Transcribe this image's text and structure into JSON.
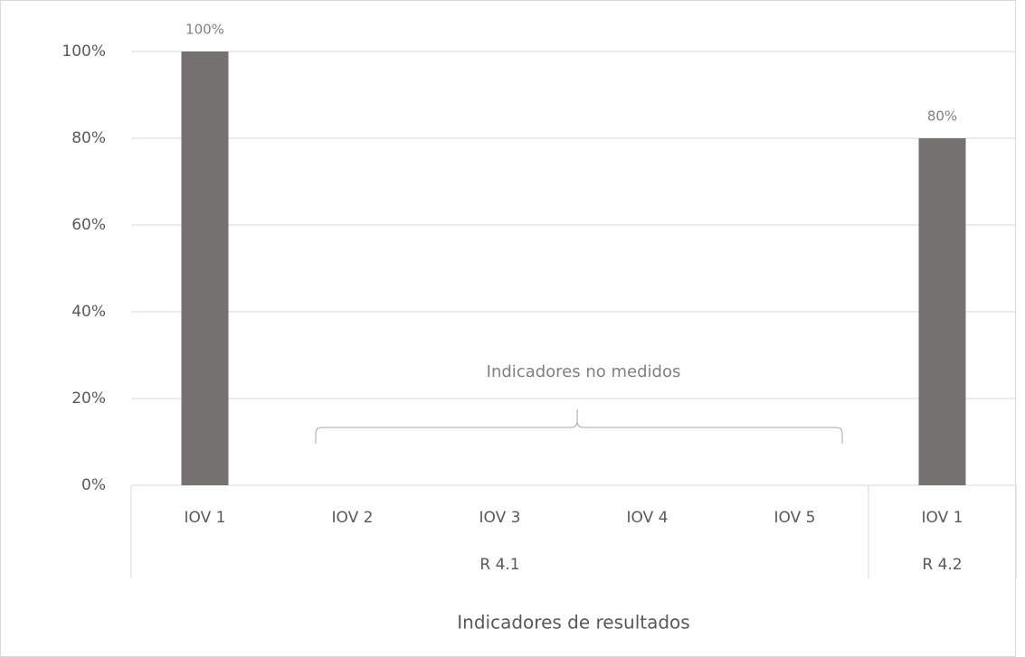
{
  "chart_data": {
    "type": "bar",
    "categories": [
      "IOV 1",
      "IOV 2",
      "IOV 3",
      "IOV 4",
      "IOV 5",
      "IOV 1"
    ],
    "groups": [
      {
        "label": "R 4.1",
        "span": 5
      },
      {
        "label": "R 4.2",
        "span": 1
      }
    ],
    "values": [
      100,
      null,
      null,
      null,
      null,
      80
    ],
    "value_labels": [
      "100%",
      null,
      null,
      null,
      null,
      "80%"
    ],
    "color": "#767171",
    "ylim": [
      0,
      100
    ],
    "yticks": [
      {
        "value": 0,
        "label": "0%"
      },
      {
        "value": 20,
        "label": "20%"
      },
      {
        "value": 40,
        "label": "40%"
      },
      {
        "value": 60,
        "label": "60%"
      },
      {
        "value": 80,
        "label": "80%"
      },
      {
        "value": 100,
        "label": "100%"
      }
    ],
    "grid": true,
    "annotation": "Indicadores no medidos",
    "xlabel": "Indicadores de resultados"
  }
}
